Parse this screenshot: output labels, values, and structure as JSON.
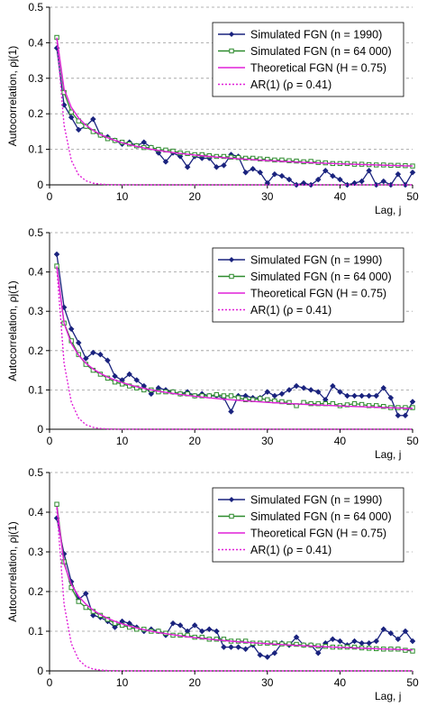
{
  "chart_data": [
    {
      "type": "line",
      "xlabel": "Lag, j",
      "ylabel": "Autocorrelation, ρj(1)",
      "xlim": [
        0,
        50
      ],
      "ylim": [
        0,
        0.5
      ],
      "xticks": [
        "0",
        "10",
        "20",
        "30",
        "40",
        "50"
      ],
      "yticks": [
        "0",
        "0.1",
        "0.2",
        "0.3",
        "0.4",
        "0.5"
      ],
      "grid": "horizontal dashed",
      "legend_position": "top-right",
      "series": [
        {
          "name": "Simulated FGN (n = 1990)",
          "color": "#1a237e",
          "marker": "diamond",
          "x_start": 1,
          "values": [
            0.385,
            0.225,
            0.19,
            0.155,
            0.165,
            0.185,
            0.14,
            0.135,
            0.125,
            0.115,
            0.12,
            0.11,
            0.12,
            0.105,
            0.09,
            0.065,
            0.09,
            0.08,
            0.05,
            0.08,
            0.075,
            0.075,
            0.05,
            0.055,
            0.085,
            0.08,
            0.035,
            0.045,
            0.035,
            0.005,
            0.03,
            0.025,
            0.015,
            0.0,
            0.005,
            0.0,
            0.015,
            0.04,
            0.025,
            0.015,
            0.0,
            0.005,
            0.01,
            0.04,
            0.0,
            0.01,
            0.0,
            0.03,
            0.0,
            0.035
          ]
        },
        {
          "name": "Simulated FGN (n = 64 000)",
          "color": "#2e8b2e",
          "marker": "square",
          "x_start": 1,
          "values": [
            0.415,
            0.26,
            0.205,
            0.18,
            0.165,
            0.15,
            0.14,
            0.13,
            0.125,
            0.12,
            0.115,
            0.11,
            0.105,
            0.105,
            0.1,
            0.098,
            0.095,
            0.09,
            0.088,
            0.085,
            0.085,
            0.082,
            0.08,
            0.08,
            0.078,
            0.077,
            0.075,
            0.075,
            0.073,
            0.072,
            0.07,
            0.07,
            0.068,
            0.067,
            0.065,
            0.066,
            0.063,
            0.062,
            0.06,
            0.06,
            0.06,
            0.058,
            0.058,
            0.057,
            0.056,
            0.056,
            0.055,
            0.055,
            0.054,
            0.053
          ]
        },
        {
          "name": "Theoretical FGN (H = 0.75)",
          "color": "#e020d8",
          "marker": "none",
          "function": "fgn",
          "H": 0.75
        },
        {
          "name": "AR(1) (ρ = 0.41)",
          "color": "#e020d8",
          "marker": "none",
          "dashed": true,
          "function": "ar1",
          "rho": 0.41
        }
      ]
    },
    {
      "type": "line",
      "xlabel": "Lag, j",
      "ylabel": "Autocorrelation, ρj(1)",
      "xlim": [
        0,
        50
      ],
      "ylim": [
        0,
        0.5
      ],
      "xticks": [
        "0",
        "10",
        "20",
        "30",
        "40",
        "50"
      ],
      "yticks": [
        "0",
        "0.1",
        "0.2",
        "0.3",
        "0.4",
        "0.5"
      ],
      "grid": "horizontal dashed",
      "legend_position": "top-right",
      "series": [
        {
          "name": "Simulated FGN (n = 1990)",
          "color": "#1a237e",
          "marker": "diamond",
          "x_start": 1,
          "values": [
            0.445,
            0.31,
            0.255,
            0.22,
            0.18,
            0.195,
            0.19,
            0.175,
            0.135,
            0.125,
            0.14,
            0.125,
            0.11,
            0.09,
            0.105,
            0.1,
            0.095,
            0.09,
            0.095,
            0.085,
            0.09,
            0.085,
            0.085,
            0.08,
            0.045,
            0.085,
            0.085,
            0.08,
            0.08,
            0.095,
            0.085,
            0.09,
            0.1,
            0.11,
            0.105,
            0.1,
            0.095,
            0.075,
            0.11,
            0.095,
            0.085,
            0.085,
            0.085,
            0.085,
            0.085,
            0.105,
            0.08,
            0.035,
            0.035,
            0.07
          ]
        },
        {
          "name": "Simulated FGN (n = 64 000)",
          "color": "#2e8b2e",
          "marker": "square",
          "x_start": 1,
          "values": [
            0.415,
            0.27,
            0.225,
            0.19,
            0.165,
            0.15,
            0.14,
            0.13,
            0.12,
            0.115,
            0.11,
            0.105,
            0.1,
            0.1,
            0.095,
            0.095,
            0.095,
            0.09,
            0.09,
            0.085,
            0.085,
            0.085,
            0.088,
            0.085,
            0.085,
            0.08,
            0.075,
            0.075,
            0.078,
            0.075,
            0.072,
            0.07,
            0.068,
            0.06,
            0.068,
            0.065,
            0.065,
            0.065,
            0.065,
            0.06,
            0.062,
            0.065,
            0.063,
            0.06,
            0.06,
            0.058,
            0.055,
            0.055,
            0.055,
            0.055
          ]
        },
        {
          "name": "Theoretical FGN (H = 0.75)",
          "color": "#e020d8",
          "marker": "none",
          "function": "fgn",
          "H": 0.75
        },
        {
          "name": "AR(1) (ρ = 0.41)",
          "color": "#e020d8",
          "marker": "none",
          "dashed": true,
          "function": "ar1",
          "rho": 0.41
        }
      ]
    },
    {
      "type": "line",
      "xlabel": "Lag, j",
      "ylabel": "Autocorrelation, ρj(1)",
      "xlim": [
        0,
        50
      ],
      "ylim": [
        0,
        0.5
      ],
      "xticks": [
        "0",
        "10",
        "20",
        "30",
        "40",
        "50"
      ],
      "yticks": [
        "0",
        "0.1",
        "0.2",
        "0.3",
        "0.4",
        "0.5"
      ],
      "grid": "horizontal dashed",
      "legend_position": "top-right",
      "series": [
        {
          "name": "Simulated FGN (n = 1990)",
          "color": "#1a237e",
          "marker": "diamond",
          "x_start": 1,
          "values": [
            0.385,
            0.295,
            0.225,
            0.18,
            0.195,
            0.14,
            0.135,
            0.125,
            0.11,
            0.125,
            0.12,
            0.11,
            0.1,
            0.105,
            0.1,
            0.09,
            0.12,
            0.115,
            0.1,
            0.115,
            0.1,
            0.105,
            0.1,
            0.06,
            0.06,
            0.06,
            0.055,
            0.065,
            0.04,
            0.035,
            0.045,
            0.07,
            0.065,
            0.085,
            0.065,
            0.065,
            0.045,
            0.07,
            0.08,
            0.075,
            0.065,
            0.075,
            0.07,
            0.07,
            0.075,
            0.105,
            0.095,
            0.08,
            0.1,
            0.075
          ]
        },
        {
          "name": "Simulated FGN (n = 64 000)",
          "color": "#2e8b2e",
          "marker": "square",
          "x_start": 1,
          "values": [
            0.42,
            0.275,
            0.21,
            0.175,
            0.16,
            0.15,
            0.14,
            0.13,
            0.12,
            0.115,
            0.11,
            0.105,
            0.105,
            0.1,
            0.1,
            0.095,
            0.09,
            0.09,
            0.09,
            0.085,
            0.085,
            0.08,
            0.08,
            0.08,
            0.075,
            0.075,
            0.075,
            0.07,
            0.07,
            0.07,
            0.07,
            0.068,
            0.068,
            0.067,
            0.065,
            0.065,
            0.063,
            0.062,
            0.06,
            0.06,
            0.06,
            0.06,
            0.058,
            0.057,
            0.056,
            0.055,
            0.055,
            0.055,
            0.052,
            0.05
          ]
        },
        {
          "name": "Theoretical FGN (H = 0.75)",
          "color": "#e020d8",
          "marker": "none",
          "function": "fgn",
          "H": 0.75
        },
        {
          "name": "AR(1) (ρ = 0.41)",
          "color": "#e020d8",
          "marker": "none",
          "dashed": true,
          "function": "ar1",
          "rho": 0.41
        }
      ]
    }
  ]
}
